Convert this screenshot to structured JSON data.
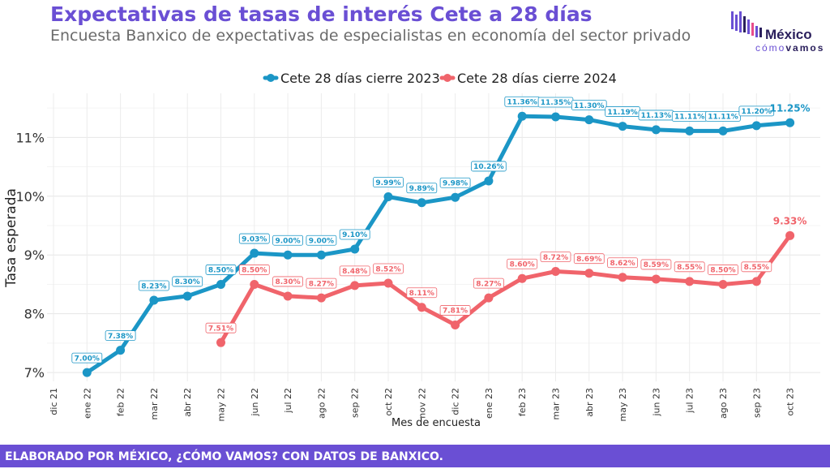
{
  "header": {
    "title": "Expectativas de tasas de interés Cete a 28 días",
    "subtitle": "Encuesta Banxico de expectativas de especialistas en economía del sector privado"
  },
  "logo": {
    "line1": "México",
    "line2_a": "cómo",
    "line2_b": "vamos",
    "colors": [
      "#6a4fd4",
      "#e84c8b",
      "#2a1f5c"
    ]
  },
  "footer": {
    "text": "ELABORADO POR MÉXICO, ¿CÓMO VAMOS? CON DATOS DE BANXICO."
  },
  "chart_data": {
    "type": "line",
    "xlabel": "Mes de encuesta",
    "ylabel": "Tasa esperada",
    "categories": [
      "dic 21",
      "ene 22",
      "feb 22",
      "mar 22",
      "abr 22",
      "may 22",
      "jun 22",
      "jul 22",
      "ago 22",
      "sep 22",
      "oct 22",
      "nov 22",
      "dic 22",
      "ene 23",
      "feb 23",
      "mar 23",
      "abr 23",
      "may 23",
      "jun 23",
      "jul 23",
      "ago 23",
      "sep 23",
      "oct 23"
    ],
    "yticks": [
      7,
      8,
      9,
      10,
      11
    ],
    "ytick_labels": [
      "7%",
      "8%",
      "9%",
      "10%",
      "11%"
    ],
    "ylim": [
      6.85,
      11.75
    ],
    "grid": true,
    "legend_position": "top-center",
    "series": [
      {
        "name": "Cete 28 días cierre 2023",
        "color": "#1b96c6",
        "values": [
          null,
          7.0,
          7.38,
          8.23,
          8.3,
          8.5,
          9.03,
          9.0,
          9.0,
          9.1,
          9.99,
          9.89,
          9.98,
          10.26,
          11.36,
          11.35,
          11.3,
          11.19,
          11.13,
          11.11,
          11.11,
          11.2,
          11.25
        ],
        "labels": [
          null,
          "7.00%",
          "7.38%",
          "8.23%",
          "8.30%",
          "8.50%",
          "9.03%",
          "9.00%",
          "9.00%",
          "9.10%",
          "9.99%",
          "9.89%",
          "9.98%",
          "10.26%",
          "11.36%",
          "11.35%",
          "11.30%",
          "11.19%",
          "11.13%",
          "11.11%",
          "11.11%",
          "11.20%",
          "11.25%"
        ]
      },
      {
        "name": "Cete 28 días cierre 2024",
        "color": "#f0646b",
        "values": [
          null,
          null,
          null,
          null,
          null,
          7.51,
          8.5,
          8.3,
          8.27,
          8.48,
          8.52,
          8.11,
          7.81,
          8.27,
          8.6,
          8.72,
          8.69,
          8.62,
          8.59,
          8.55,
          8.5,
          8.55,
          9.33
        ],
        "labels": [
          null,
          null,
          null,
          null,
          null,
          "7.51%",
          "8.50%",
          "8.30%",
          "8.27%",
          "8.48%",
          "8.52%",
          "8.11%",
          "7.81%",
          "8.27%",
          "8.60%",
          "8.72%",
          "8.69%",
          "8.62%",
          "8.59%",
          "8.55%",
          "8.50%",
          "8.55%",
          "9.33%"
        ]
      }
    ]
  }
}
